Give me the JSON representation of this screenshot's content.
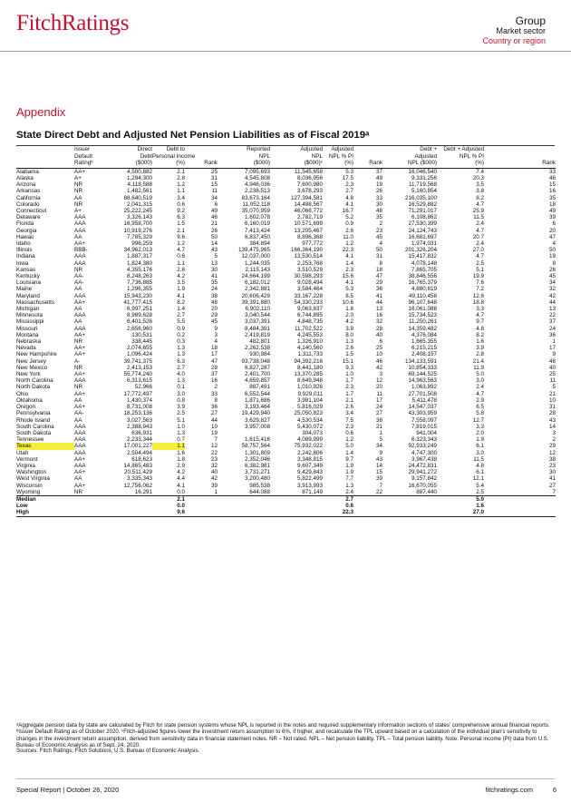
{
  "header": {
    "logo": "FitchRatings",
    "group": "Group",
    "market_sector": "Market sector",
    "country": "Country or region"
  },
  "section": "Appendix",
  "title": "State Direct Debt and Adjusted Net Pension Liabilities as of Fiscal 2019ᵃ",
  "columns": {
    "issuer": [
      "Issuer",
      "Default",
      "Ratingᵇ"
    ],
    "direct_debt": [
      "Direct",
      "Debt",
      "($000)"
    ],
    "debt_pi": [
      "Debt to",
      "Personal Income",
      "(%)"
    ],
    "debt_rank": "Rank",
    "npl": [
      "Reported",
      "NPL",
      "($000)"
    ],
    "adj_npl": [
      "Adjusted",
      "NPL",
      "($000)ᶜ"
    ],
    "adj_npl_pi": [
      "Adjusted",
      "NPL % PI",
      "(%)"
    ],
    "adj_rank": "Rank",
    "debt_adj": [
      "Debt +",
      "Adjusted",
      "NPL ($000)"
    ],
    "debt_adj_pi": [
      "Debt + Adjusted",
      "NPL % PI",
      "(%)"
    ],
    "final_rank": "Rank"
  },
  "rows": [
    [
      "Alabama",
      "AA+",
      "4,500,882",
      "2.1",
      "25",
      "7,095,693",
      "11,545,658",
      "5.3",
      "37",
      "16,046,540",
      "7.4",
      "33"
    ],
    [
      "Alaska",
      "A+",
      "1,294,300",
      "2.8",
      "31",
      "4,545,808",
      "8,036,956",
      "17.5",
      "49",
      "9,331,256",
      "20.3",
      "46"
    ],
    [
      "Arizona",
      "NR",
      "4,118,588",
      "1.2",
      "15",
      "4,946,036",
      "7,600,980",
      "2.3",
      "19",
      "11,719,568",
      "3.5",
      "15"
    ],
    [
      "Arkansas",
      "NR",
      "1,482,561",
      "1.1",
      "11",
      "2,238,513",
      "3,678,293",
      "2.7",
      "26",
      "5,160,854",
      "3.8",
      "16"
    ],
    [
      "California",
      "AA",
      "88,640,519",
      "3.4",
      "34",
      "83,673,164",
      "127,394,581",
      "4.8",
      "33",
      "216,035,100",
      "8.2",
      "35"
    ],
    [
      "Colorado",
      "NR",
      "2,041,315",
      "0.6",
      "6",
      "11,052,118",
      "14,488,567",
      "4.1",
      "30",
      "16,529,882",
      "4.7",
      "18"
    ],
    [
      "Connecticut",
      "A+",
      "25,222,245",
      "9.2",
      "49",
      "35,070,959",
      "46,068,772",
      "16.7",
      "48",
      "71,291,017",
      "25.9",
      "49"
    ],
    [
      "Delaware",
      "AAA",
      "3,326,143",
      "6.3",
      "46",
      "1,602,078",
      "2,782,719",
      "5.2",
      "35",
      "6,108,862",
      "11.5",
      "39"
    ],
    [
      "Florida",
      "AAA",
      "16,958,700",
      "1.5",
      "21",
      "6,160,019",
      "10,571,699",
      "0.9",
      "2",
      "27,530,399",
      "2.4",
      "6"
    ],
    [
      "Georgia",
      "AAA",
      "10,919,276",
      "2.1",
      "26",
      "7,413,424",
      "13,205,467",
      "2.6",
      "23",
      "24,124,743",
      "4.7",
      "20"
    ],
    [
      "Hawaii",
      "AA",
      "7,785,329",
      "9.6",
      "50",
      "6,837,450",
      "8,896,368",
      "11.0",
      "45",
      "16,681,697",
      "20.7",
      "47"
    ],
    [
      "Idaho",
      "AA+",
      "996,259",
      "1.2",
      "14",
      "384,894",
      "977,772",
      "1.2",
      "4",
      "1,974,031",
      "2.4",
      "4"
    ],
    [
      "Illinois",
      "BBB-",
      "34,962,013",
      "4.7",
      "43",
      "139,475,965",
      "166,364,190",
      "22.3",
      "50",
      "201,326,204",
      "27.0",
      "50"
    ],
    [
      "Indiana",
      "AAA",
      "1,887,317",
      "0.6",
      "5",
      "12,037,000",
      "13,530,514",
      "4.1",
      "31",
      "15,417,832",
      "4.7",
      "19"
    ],
    [
      "Iowa",
      "AAA",
      "1,824,380",
      "1.1",
      "13",
      "1,244,035",
      "2,253,768",
      "1.4",
      "8",
      "4,078,148",
      "2.5",
      "8"
    ],
    [
      "Kansas",
      "NR",
      "4,355,176",
      "2.8",
      "30",
      "2,115,143",
      "3,510,529",
      "2.3",
      "18",
      "7,865,705",
      "5.1",
      "26"
    ],
    [
      "Kentucky",
      "AA-",
      "8,248,263",
      "4.2",
      "41",
      "24,664,199",
      "30,598,293",
      "15.6",
      "47",
      "38,846,556",
      "19.9",
      "45"
    ],
    [
      "Louisiana",
      "AA-",
      "7,736,885",
      "3.5",
      "35",
      "6,182,012",
      "9,028,494",
      "4.1",
      "29",
      "16,765,379",
      "7.6",
      "34"
    ],
    [
      "Maine",
      "AA",
      "1,296,355",
      "1.9",
      "24",
      "2,342,881",
      "3,584,464",
      "5.3",
      "36",
      "4,880,819",
      "7.2",
      "32"
    ],
    [
      "Maryland",
      "AAA",
      "15,943,230",
      "4.1",
      "38",
      "20,606,429",
      "33,167,228",
      "8.5",
      "41",
      "49,110,458",
      "12.6",
      "42"
    ],
    [
      "Massachusetts",
      "AA+",
      "41,777,415",
      "8.2",
      "48",
      "39,391,880",
      "54,330,233",
      "10.6",
      "44",
      "96,107,648",
      "18.8",
      "44"
    ],
    [
      "Michigan",
      "AA",
      "6,997,251",
      "1.4",
      "20",
      "6,902,110",
      "9,063,837",
      "1.8",
      "13",
      "16,061,088",
      "3.3",
      "13"
    ],
    [
      "Minnesota",
      "AAA",
      "8,989,628",
      "2.7",
      "29",
      "3,040,544",
      "6,744,895",
      "2.0",
      "16",
      "15,734,523",
      "4.7",
      "22"
    ],
    [
      "Mississippi",
      "AA",
      "6,401,526",
      "5.5",
      "45",
      "3,037,391",
      "4,848,735",
      "4.2",
      "32",
      "11,250,261",
      "9.7",
      "37"
    ],
    [
      "Missouri",
      "AAA",
      "2,656,960",
      "0.9",
      "9",
      "8,484,391",
      "11,702,522",
      "3.9",
      "28",
      "14,359,482",
      "4.8",
      "24"
    ],
    [
      "Montana",
      "AA+",
      "130,531",
      "0.2",
      "3",
      "2,419,819",
      "4,245,553",
      "8.0",
      "40",
      "4,376,084",
      "8.2",
      "36"
    ],
    [
      "Nebraska",
      "NR",
      "338,445",
      "0.3",
      "4",
      "482,801",
      "1,326,910",
      "1.3",
      "6",
      "1,665,355",
      "1.6",
      "1"
    ],
    [
      "Nevada",
      "AA+",
      "2,074,655",
      "1.3",
      "18",
      "2,262,538",
      "4,140,560",
      "2.6",
      "25",
      "6,215,215",
      "3.9",
      "17"
    ],
    [
      "New Hampshire",
      "AA+",
      "1,096,424",
      "1.3",
      "17",
      "930,984",
      "1,311,733",
      "1.5",
      "10",
      "2,408,157",
      "2.8",
      "9"
    ],
    [
      "New Jersey",
      "A-",
      "39,741,375",
      "6.3",
      "47",
      "93,738,048",
      "94,392,216",
      "15.1",
      "46",
      "134,133,591",
      "21.4",
      "48"
    ],
    [
      "New Mexico",
      "NR",
      "2,413,153",
      "2.7",
      "28",
      "6,827,287",
      "8,441,180",
      "9.3",
      "42",
      "10,854,333",
      "11.9",
      "40"
    ],
    [
      "New York",
      "AA+",
      "55,774,240",
      "4.0",
      "37",
      "2,401,700",
      "13,370,285",
      "1.0",
      "3",
      "69,144,525",
      "5.0",
      "25"
    ],
    [
      "North Carolina",
      "AAA",
      "6,313,615",
      "1.3",
      "16",
      "4,659,857",
      "8,649,948",
      "1.7",
      "12",
      "14,963,563",
      "3.0",
      "11"
    ],
    [
      "North Dakota",
      "NR",
      "52,966",
      "0.1",
      "2",
      "887,491",
      "1,010,926",
      "2.3",
      "20",
      "1,063,892",
      "2.4",
      "5"
    ],
    [
      "Ohio",
      "AA+",
      "17,772,497",
      "3.0",
      "33",
      "6,552,544",
      "9,929,011",
      "1.7",
      "11",
      "27,701,508",
      "4.7",
      "21"
    ],
    [
      "Oklahoma",
      "AA",
      "1,430,374",
      "0.8",
      "8",
      "1,871,686",
      "3,981,104",
      "2.1",
      "17",
      "5,411,478",
      "2.9",
      "10"
    ],
    [
      "Oregon",
      "AA+",
      "8,731,008",
      "3.9",
      "36",
      "3,193,464",
      "5,816,029",
      "2.6",
      "24",
      "14,547,037",
      "6.5",
      "31"
    ],
    [
      "Pennsylvania",
      "AA-",
      "18,253,136",
      "2.5",
      "27",
      "19,429,940",
      "25,050,823",
      "3.4",
      "27",
      "43,303,959",
      "5.8",
      "28"
    ],
    [
      "Rhode Island",
      "AA",
      "3,027,563",
      "5.1",
      "44",
      "3,629,827",
      "4,530,534",
      "7.5",
      "38",
      "7,558,097",
      "12.7",
      "43"
    ],
    [
      "South Carolina",
      "AAA",
      "2,388,943",
      "1.0",
      "10",
      "3,957,008",
      "5,430,072",
      "2.3",
      "21",
      "7,819,015",
      "3.3",
      "14"
    ],
    [
      "South Dakota",
      "AAA",
      "636,931",
      "1.3",
      "19",
      "",
      "304,073",
      "0.6",
      "1",
      "941,004",
      "2.0",
      "3"
    ],
    [
      "Tennessee",
      "AAA",
      "2,233,344",
      "0.7",
      "7",
      "1,615,416",
      "4,089,999",
      "1.2",
      "5",
      "6,323,343",
      "1.9",
      "2"
    ],
    [
      "Texas",
      "AAA",
      "17,001,227",
      "1.1",
      "12",
      "58,757,564",
      "75,932,022",
      "5.0",
      "34",
      "92,933,249",
      "6.1",
      "29"
    ],
    [
      "Utah",
      "AAA",
      "2,504,494",
      "1.6",
      "22",
      "1,301,809",
      "2,242,806",
      "1.4",
      "9",
      "4,747,300",
      "3.0",
      "12"
    ],
    [
      "Vermont",
      "AA+",
      "618,623",
      "1.8",
      "23",
      "2,352,046",
      "3,348,815",
      "9.7",
      "43",
      "3,967,438",
      "11.5",
      "38"
    ],
    [
      "Virginia",
      "AAA",
      "14,865,483",
      "2.9",
      "32",
      "6,382,981",
      "9,607,349",
      "1.9",
      "14",
      "24,472,831",
      "4.8",
      "23"
    ],
    [
      "Washington",
      "AA+",
      "20,511,429",
      "4.2",
      "40",
      "3,731,271",
      "9,429,843",
      "1.9",
      "15",
      "29,941,272",
      "6.1",
      "30"
    ],
    [
      "West Virginia",
      "AA",
      "3,335,343",
      "4.4",
      "42",
      "3,200,480",
      "5,822,499",
      "7.7",
      "39",
      "9,157,842",
      "12.1",
      "41"
    ],
    [
      "Wisconsin",
      "AA+",
      "12,756,062",
      "4.1",
      "39",
      "985,538",
      "3,913,993",
      "1.3",
      "7",
      "16,670,055",
      "5.4",
      "27"
    ],
    [
      "Wyoming",
      "NR",
      "16,291",
      "0.0",
      "1",
      "644,088",
      "871,149",
      "2.4",
      "22",
      "887,440",
      "2.5",
      "7"
    ]
  ],
  "summary": [
    {
      "label": "Median",
      "debt_pi": "2.1",
      "adj_npl_pi": "2.7",
      "debt_adj_pi": "5.0"
    },
    {
      "label": "Low",
      "debt_pi": "0.0",
      "adj_npl_pi": "0.6",
      "debt_adj_pi": "1.6"
    },
    {
      "label": "High",
      "debt_pi": "9.6",
      "adj_npl_pi": "22.3",
      "debt_adj_pi": "27.0"
    }
  ],
  "footnote": "ᵃAggregate pension data by state are calculated by Fitch for state pension systems whose NPL is reported in the notes and required supplementary information sections of states' comprehensive annual financial reports. ᵇIssuer Default Rating as of October 2020. ᶜFitch-adjusted figures lower the investment return assumption to 6%, if higher, and recalculate the TPL upward based on a calculation of the individual plan's sensitivity to changes in the investment return assumption, derived from sensitivity data in financial statement notes. NR – Not rated. NPL – Net pension liability. TPL – Total pension liability. Note: Personal income (PI) data from U.S. Bureau of Economic Analysis as of Sept. 24, 2020.",
  "sources": "Sources: Fitch Ratings, Fitch Solutions, U.S. Bureau of Economic Analysis.",
  "footer": {
    "left": "Special Report  |  October 26, 2020",
    "right": "fitchratings.com",
    "page": "6"
  },
  "highlight": {
    "row": "Texas",
    "color": "#f5ee3a"
  },
  "colors": {
    "brand": "#c8102e"
  }
}
